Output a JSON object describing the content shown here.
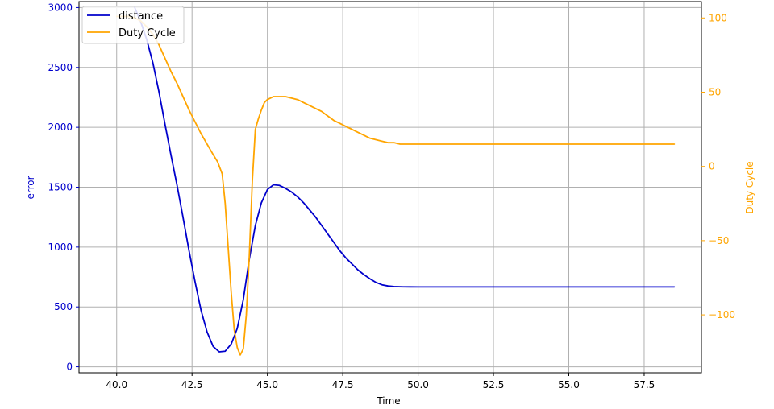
{
  "chart_data": {
    "type": "line",
    "xlabel": "Time",
    "ylabel_left": "error",
    "ylabel_right": "Duty Cycle",
    "xlim": [
      38.75,
      59.4
    ],
    "ylim_left": [
      -50,
      3050
    ],
    "ylim_right": [
      -139,
      111
    ],
    "xticks": [
      40.0,
      42.5,
      45.0,
      47.5,
      50.0,
      52.5,
      55.0,
      57.5
    ],
    "xtick_labels": [
      "40.0",
      "42.5",
      "45.0",
      "47.5",
      "50.0",
      "52.5",
      "55.0",
      "57.5"
    ],
    "yticks_left": [
      0,
      500,
      1000,
      1500,
      2000,
      2500,
      3000
    ],
    "ytick_labels_left": [
      "0",
      "500",
      "1000",
      "1500",
      "2000",
      "2500",
      "3000"
    ],
    "yticks_right": [
      -100,
      -50,
      0,
      50,
      100
    ],
    "ytick_labels_right": [
      "−100",
      "−50",
      "0",
      "50",
      "100"
    ],
    "grid": true,
    "legend_position": "top-left",
    "series": [
      {
        "name": "distance",
        "axis": "left",
        "color": "#0000cc",
        "x": [
          40.6,
          40.8,
          41.0,
          41.2,
          41.4,
          41.6,
          41.8,
          42.0,
          42.2,
          42.4,
          42.6,
          42.8,
          43.0,
          43.2,
          43.4,
          43.6,
          43.8,
          44.0,
          44.2,
          44.4,
          44.6,
          44.8,
          45.0,
          45.2,
          45.4,
          45.6,
          45.8,
          46.0,
          46.2,
          46.4,
          46.6,
          46.8,
          47.0,
          47.2,
          47.4,
          47.6,
          47.8,
          48.0,
          48.2,
          48.4,
          48.6,
          48.8,
          49.0,
          49.2,
          49.5,
          50.0,
          51.0,
          52.0,
          53.0,
          54.0,
          55.0,
          56.0,
          57.0,
          58.0,
          58.5
        ],
        "y": [
          3000,
          2880,
          2730,
          2540,
          2300,
          2030,
          1770,
          1520,
          1250,
          970,
          710,
          470,
          290,
          170,
          125,
          130,
          190,
          320,
          560,
          900,
          1180,
          1370,
          1480,
          1520,
          1515,
          1490,
          1460,
          1420,
          1370,
          1310,
          1250,
          1180,
          1110,
          1040,
          970,
          910,
          860,
          810,
          770,
          735,
          705,
          685,
          675,
          670,
          668,
          667,
          667,
          667,
          667,
          667,
          667,
          667,
          667,
          667,
          667
        ]
      },
      {
        "name": "Duty Cycle",
        "axis": "right",
        "color": "#ffa500",
        "x": [
          40.0,
          40.4,
          40.6,
          40.8,
          41.0,
          41.2,
          41.4,
          41.6,
          41.8,
          42.0,
          42.2,
          42.4,
          42.6,
          42.8,
          43.0,
          43.2,
          43.35,
          43.5,
          43.6,
          43.7,
          43.8,
          43.9,
          44.0,
          44.1,
          44.2,
          44.3,
          44.4,
          44.5,
          44.6,
          44.7,
          44.8,
          44.9,
          45.0,
          45.2,
          45.4,
          45.6,
          45.8,
          46.0,
          46.2,
          46.4,
          46.6,
          46.8,
          47.0,
          47.2,
          47.4,
          47.6,
          47.8,
          48.0,
          48.2,
          48.4,
          48.6,
          48.8,
          49.0,
          49.2,
          49.4,
          49.6,
          50.0,
          51.0,
          52.0,
          53.0,
          54.0,
          55.0,
          56.0,
          57.0,
          58.0,
          58.5
        ],
        "y": [
          101,
          101,
          100,
          98,
          94,
          89,
          82,
          73,
          64,
          56,
          47,
          38,
          30,
          22,
          15,
          8,
          3,
          -5,
          -25,
          -55,
          -85,
          -110,
          -122,
          -127,
          -123,
          -100,
          -60,
          -10,
          25,
          32,
          38,
          43,
          45,
          47,
          47,
          47,
          46,
          45,
          43,
          41,
          39,
          37,
          34,
          31,
          29,
          27,
          25,
          23,
          21,
          19,
          18,
          17,
          16,
          16,
          15,
          15,
          15,
          15,
          15,
          15,
          15,
          15,
          15,
          15,
          15,
          15
        ]
      }
    ]
  }
}
